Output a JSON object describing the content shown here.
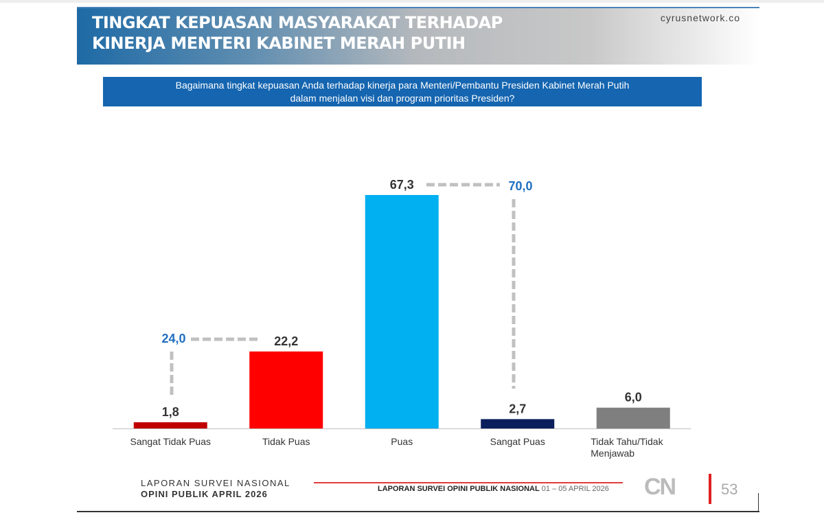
{
  "header": {
    "title_line1": "TINGKAT KEPUASAN MASYARAKAT TERHADAP",
    "title_line2": "KINERJA MENTERI KABINET MERAH PUTIH",
    "site": "cyrusnetwork.co"
  },
  "question": {
    "line1": "Bagaimana tingkat kepuasan Anda terhadap kinerja para Menteri/Pembantu Presiden Kabinet Merah Putih",
    "line2": "dalam menjalan visi dan program prioritas Presiden?"
  },
  "chart_data": {
    "type": "bar",
    "categories": [
      "Sangat Tidak Puas",
      "Tidak Puas",
      "Puas",
      "Sangat Puas",
      "Tidak Tahu/Tidak Menjawab"
    ],
    "values": [
      1.8,
      22.2,
      67.3,
      2.7,
      6.0
    ],
    "value_labels": [
      "1,8",
      "22,2",
      "67,3",
      "2,7",
      "6,0"
    ],
    "colors": [
      "#c00000",
      "#ff0000",
      "#00b0f0",
      "#0b1f5c",
      "#7f7f7f"
    ],
    "ylim": [
      0,
      70
    ],
    "grid": false,
    "annotations": [
      {
        "label": "24,0",
        "combines": [
          "Sangat Tidak Puas",
          "Tidak Puas"
        ],
        "color": "#1f6fc0"
      },
      {
        "label": "70,0",
        "combines": [
          "Puas",
          "Sangat Puas"
        ],
        "color": "#1f6fc0"
      }
    ]
  },
  "footer": {
    "left_line1": "LAPORAN SURVEI NASIONAL",
    "left_line2": "OPINI PUBLIK APRIL 2026",
    "mid_bold": "LAPORAN SURVEI OPINI PUBLIK NASIONAL",
    "mid_date": "01 – 05 APRIL 2026",
    "logo": "CN CYRUSNETWORK",
    "page": "53"
  }
}
